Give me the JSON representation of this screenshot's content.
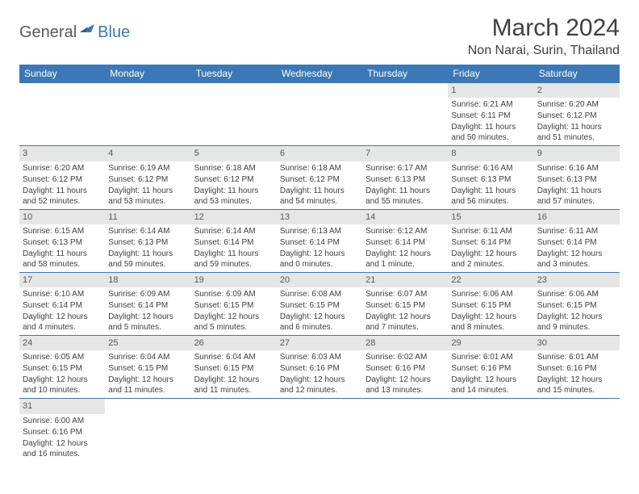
{
  "logo": {
    "text1": "General",
    "text2": "Blue"
  },
  "title": "March 2024",
  "location": "Non Narai, Surin, Thailand",
  "colors": {
    "header_bg": "#3b78b5",
    "header_fg": "#ffffff",
    "daynum_bg": "#e6e6e6",
    "daynum_fg": "#595959",
    "border": "#3b78b5",
    "text": "#404040",
    "logo_gray": "#595959",
    "logo_blue": "#3b78b5"
  },
  "weekdays": [
    "Sunday",
    "Monday",
    "Tuesday",
    "Wednesday",
    "Thursday",
    "Friday",
    "Saturday"
  ],
  "weeks": [
    [
      null,
      null,
      null,
      null,
      null,
      {
        "n": "1",
        "sunrise": "6:21 AM",
        "sunset": "6:11 PM",
        "daylight": "11 hours and 50 minutes."
      },
      {
        "n": "2",
        "sunrise": "6:20 AM",
        "sunset": "6:12 PM",
        "daylight": "11 hours and 51 minutes."
      }
    ],
    [
      {
        "n": "3",
        "sunrise": "6:20 AM",
        "sunset": "6:12 PM",
        "daylight": "11 hours and 52 minutes."
      },
      {
        "n": "4",
        "sunrise": "6:19 AM",
        "sunset": "6:12 PM",
        "daylight": "11 hours and 53 minutes."
      },
      {
        "n": "5",
        "sunrise": "6:18 AM",
        "sunset": "6:12 PM",
        "daylight": "11 hours and 53 minutes."
      },
      {
        "n": "6",
        "sunrise": "6:18 AM",
        "sunset": "6:12 PM",
        "daylight": "11 hours and 54 minutes."
      },
      {
        "n": "7",
        "sunrise": "6:17 AM",
        "sunset": "6:13 PM",
        "daylight": "11 hours and 55 minutes."
      },
      {
        "n": "8",
        "sunrise": "6:16 AM",
        "sunset": "6:13 PM",
        "daylight": "11 hours and 56 minutes."
      },
      {
        "n": "9",
        "sunrise": "6:16 AM",
        "sunset": "6:13 PM",
        "daylight": "11 hours and 57 minutes."
      }
    ],
    [
      {
        "n": "10",
        "sunrise": "6:15 AM",
        "sunset": "6:13 PM",
        "daylight": "11 hours and 58 minutes."
      },
      {
        "n": "11",
        "sunrise": "6:14 AM",
        "sunset": "6:13 PM",
        "daylight": "11 hours and 59 minutes."
      },
      {
        "n": "12",
        "sunrise": "6:14 AM",
        "sunset": "6:14 PM",
        "daylight": "11 hours and 59 minutes."
      },
      {
        "n": "13",
        "sunrise": "6:13 AM",
        "sunset": "6:14 PM",
        "daylight": "12 hours and 0 minutes."
      },
      {
        "n": "14",
        "sunrise": "6:12 AM",
        "sunset": "6:14 PM",
        "daylight": "12 hours and 1 minute."
      },
      {
        "n": "15",
        "sunrise": "6:11 AM",
        "sunset": "6:14 PM",
        "daylight": "12 hours and 2 minutes."
      },
      {
        "n": "16",
        "sunrise": "6:11 AM",
        "sunset": "6:14 PM",
        "daylight": "12 hours and 3 minutes."
      }
    ],
    [
      {
        "n": "17",
        "sunrise": "6:10 AM",
        "sunset": "6:14 PM",
        "daylight": "12 hours and 4 minutes."
      },
      {
        "n": "18",
        "sunrise": "6:09 AM",
        "sunset": "6:14 PM",
        "daylight": "12 hours and 5 minutes."
      },
      {
        "n": "19",
        "sunrise": "6:09 AM",
        "sunset": "6:15 PM",
        "daylight": "12 hours and 5 minutes."
      },
      {
        "n": "20",
        "sunrise": "6:08 AM",
        "sunset": "6:15 PM",
        "daylight": "12 hours and 6 minutes."
      },
      {
        "n": "21",
        "sunrise": "6:07 AM",
        "sunset": "6:15 PM",
        "daylight": "12 hours and 7 minutes."
      },
      {
        "n": "22",
        "sunrise": "6:06 AM",
        "sunset": "6:15 PM",
        "daylight": "12 hours and 8 minutes."
      },
      {
        "n": "23",
        "sunrise": "6:06 AM",
        "sunset": "6:15 PM",
        "daylight": "12 hours and 9 minutes."
      }
    ],
    [
      {
        "n": "24",
        "sunrise": "6:05 AM",
        "sunset": "6:15 PM",
        "daylight": "12 hours and 10 minutes."
      },
      {
        "n": "25",
        "sunrise": "6:04 AM",
        "sunset": "6:15 PM",
        "daylight": "12 hours and 11 minutes."
      },
      {
        "n": "26",
        "sunrise": "6:04 AM",
        "sunset": "6:15 PM",
        "daylight": "12 hours and 11 minutes."
      },
      {
        "n": "27",
        "sunrise": "6:03 AM",
        "sunset": "6:16 PM",
        "daylight": "12 hours and 12 minutes."
      },
      {
        "n": "28",
        "sunrise": "6:02 AM",
        "sunset": "6:16 PM",
        "daylight": "12 hours and 13 minutes."
      },
      {
        "n": "29",
        "sunrise": "6:01 AM",
        "sunset": "6:16 PM",
        "daylight": "12 hours and 14 minutes."
      },
      {
        "n": "30",
        "sunrise": "6:01 AM",
        "sunset": "6:16 PM",
        "daylight": "12 hours and 15 minutes."
      }
    ],
    [
      {
        "n": "31",
        "sunrise": "6:00 AM",
        "sunset": "6:16 PM",
        "daylight": "12 hours and 16 minutes."
      },
      null,
      null,
      null,
      null,
      null,
      null
    ]
  ]
}
